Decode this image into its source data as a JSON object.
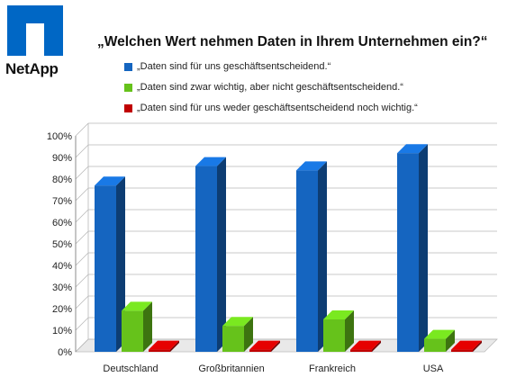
{
  "logo": {
    "text": "NetApp",
    "color": "#0067c5"
  },
  "chart_data": {
    "type": "bar",
    "title": "„Welchen Wert nehmen Daten in Ihrem Unternehmen ein?“",
    "categories": [
      "Deutschland",
      "Großbritannien",
      "Frankreich",
      "USA"
    ],
    "series": [
      {
        "name": "„Daten sind für uns geschäftsentscheidend.“",
        "values": [
          77,
          86,
          84,
          92
        ],
        "color": "#1565c0"
      },
      {
        "name": "„Daten sind zwar wichtig, aber nicht geschäftsentscheidend.“",
        "values": [
          19,
          12,
          15,
          6
        ],
        "color": "#66c21b"
      },
      {
        "name": "„Daten sind für uns weder geschäftsentscheidend noch wichtig.“",
        "values": [
          1,
          1,
          1,
          1
        ],
        "color": "#c00000"
      }
    ],
    "y_ticks": [
      "0%",
      "10%",
      "20%",
      "30%",
      "40%",
      "50%",
      "60%",
      "70%",
      "80%",
      "90%",
      "100%"
    ],
    "ylim": [
      0,
      100
    ],
    "grid": true,
    "legend_position": "top"
  }
}
